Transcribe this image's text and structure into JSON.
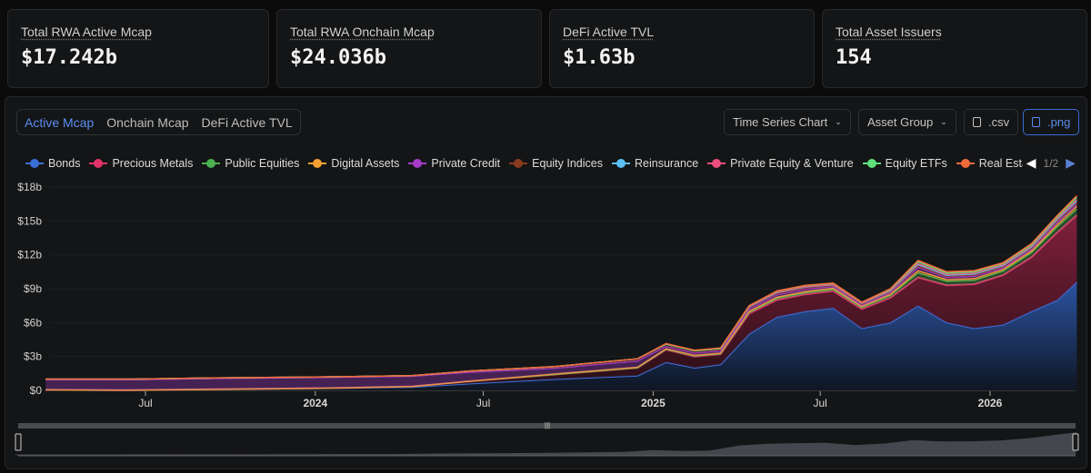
{
  "stats": [
    {
      "label": "Total RWA Active Mcap",
      "value": "$17.242b"
    },
    {
      "label": "Total RWA Onchain Mcap",
      "value": "$24.036b"
    },
    {
      "label": "DeFi Active TVL",
      "value": "$1.63b"
    },
    {
      "label": "Total Asset Issuers",
      "value": "154"
    }
  ],
  "tabs": [
    {
      "label": "Active Mcap",
      "active": true
    },
    {
      "label": "Onchain Mcap"
    },
    {
      "label": "DeFi Active TVL"
    }
  ],
  "toolbar": {
    "chart_type": "Time Series Chart",
    "group": "Asset Group",
    "csv": ".csv",
    "png": ".png"
  },
  "legend_page": "1/2",
  "chart_data": {
    "type": "area",
    "stacked": true,
    "y_ticks": [
      "$0",
      "$3b",
      "$6b",
      "$9b",
      "$12b",
      "$15b",
      "$18b"
    ],
    "ylim": [
      0,
      18
    ],
    "x_ticks": [
      {
        "label": "Jul",
        "date": "2023-07-01"
      },
      {
        "label": "2024",
        "date": "2024-01-01",
        "bold": true
      },
      {
        "label": "Jul",
        "date": "2024-07-01"
      },
      {
        "label": "2025",
        "date": "2025-01-01",
        "bold": true
      },
      {
        "label": "Jul",
        "date": "2025-07-01"
      },
      {
        "label": "2026",
        "date": "2026-01-01",
        "bold": true
      }
    ],
    "x": [
      "2023-03-15",
      "2023-06-15",
      "2023-09-15",
      "2024-01-15",
      "2024-04-15",
      "2024-06-15",
      "2024-09-15",
      "2024-12-15",
      "2025-01-15",
      "2025-02-15",
      "2025-03-15",
      "2025-04-15",
      "2025-05-15",
      "2025-06-15",
      "2025-07-15",
      "2025-08-15",
      "2025-09-15",
      "2025-10-15",
      "2025-11-15",
      "2025-12-15",
      "2026-01-15",
      "2026-02-15",
      "2026-03-15",
      "2026-04-05"
    ],
    "series": [
      {
        "name": "Bonds",
        "color": "#3b6fd8",
        "values": [
          0.05,
          0.02,
          0.1,
          0.2,
          0.3,
          0.6,
          1.0,
          1.3,
          2.5,
          2.0,
          2.3,
          5.0,
          6.5,
          7.0,
          7.3,
          5.5,
          6.0,
          7.5,
          6.0,
          5.5,
          5.8,
          7.0,
          8.0,
          9.6
        ]
      },
      {
        "name": "Precious Metals",
        "color": "#e0336a",
        "values": [
          0,
          0,
          0,
          0,
          0.05,
          0.2,
          0.4,
          0.7,
          1.1,
          1.0,
          0.9,
          1.8,
          1.5,
          1.5,
          1.5,
          1.7,
          2.2,
          2.5,
          3.3,
          3.9,
          4.4,
          4.8,
          6.0,
          5.9
        ]
      },
      {
        "name": "Public Equities",
        "color": "#4caf50",
        "values": [
          0,
          0,
          0,
          0,
          0,
          0,
          0,
          0,
          0.05,
          0.05,
          0.05,
          0.1,
          0.15,
          0.15,
          0.15,
          0.15,
          0.2,
          0.4,
          0.35,
          0.35,
          0.35,
          0.4,
          0.5,
          0.55
        ]
      },
      {
        "name": "Digital Assets",
        "color": "#f5a030",
        "values": [
          0,
          0,
          0,
          0,
          0,
          0,
          0.05,
          0.05,
          0.05,
          0.05,
          0.05,
          0.1,
          0.1,
          0.1,
          0.1,
          0.08,
          0.1,
          0.2,
          0.15,
          0.15,
          0.15,
          0.15,
          0.2,
          0.25
        ]
      },
      {
        "name": "Private Credit",
        "color": "#a43cc8",
        "values": [
          0.9,
          0.93,
          0.95,
          0.95,
          0.9,
          0.8,
          0.5,
          0.55,
          0.2,
          0.2,
          0.2,
          0.2,
          0.2,
          0.2,
          0.15,
          0.12,
          0.15,
          0.3,
          0.2,
          0.2,
          0.15,
          0.15,
          0.2,
          0.2
        ]
      },
      {
        "name": "Equity Indices",
        "color": "#8a3a1e",
        "values": [
          0.05,
          0.05,
          0.05,
          0.05,
          0.05,
          0.1,
          0.15,
          0.2,
          0.2,
          0.2,
          0.2,
          0.15,
          0.15,
          0.15,
          0.1,
          0.1,
          0.1,
          0.15,
          0.12,
          0.12,
          0.12,
          0.12,
          0.15,
          0.15
        ]
      },
      {
        "name": "Reinsurance",
        "color": "#5cc0f5",
        "values": [
          0,
          0,
          0,
          0,
          0,
          0,
          0,
          0,
          0,
          0,
          0,
          0.05,
          0.05,
          0.05,
          0.05,
          0.05,
          0.05,
          0.1,
          0.08,
          0.08,
          0.08,
          0.08,
          0.1,
          0.12
        ]
      },
      {
        "name": "Private Equity & Venture",
        "color": "#ec4d7e",
        "values": [
          0,
          0,
          0,
          0,
          0,
          0,
          0,
          0,
          0,
          0,
          0,
          0.03,
          0.03,
          0.03,
          0.03,
          0.03,
          0.05,
          0.1,
          0.08,
          0.08,
          0.08,
          0.08,
          0.1,
          0.12
        ]
      },
      {
        "name": "Equity ETFs",
        "color": "#5fe07a",
        "values": [
          0,
          0,
          0,
          0,
          0,
          0,
          0,
          0,
          0,
          0,
          0,
          0.05,
          0.1,
          0.1,
          0.1,
          0.07,
          0.1,
          0.15,
          0.12,
          0.12,
          0.1,
          0.12,
          0.15,
          0.2
        ]
      },
      {
        "name": "Real Estate",
        "color": "#f26a3a",
        "values": [
          0,
          0,
          0,
          0,
          0,
          0,
          0,
          0,
          0.05,
          0.05,
          0.05,
          0.02,
          0.02,
          0.02,
          0.02,
          0,
          0.05,
          0.1,
          0.1,
          0.1,
          0.07,
          0.1,
          0.1,
          0.15
        ]
      }
    ]
  }
}
